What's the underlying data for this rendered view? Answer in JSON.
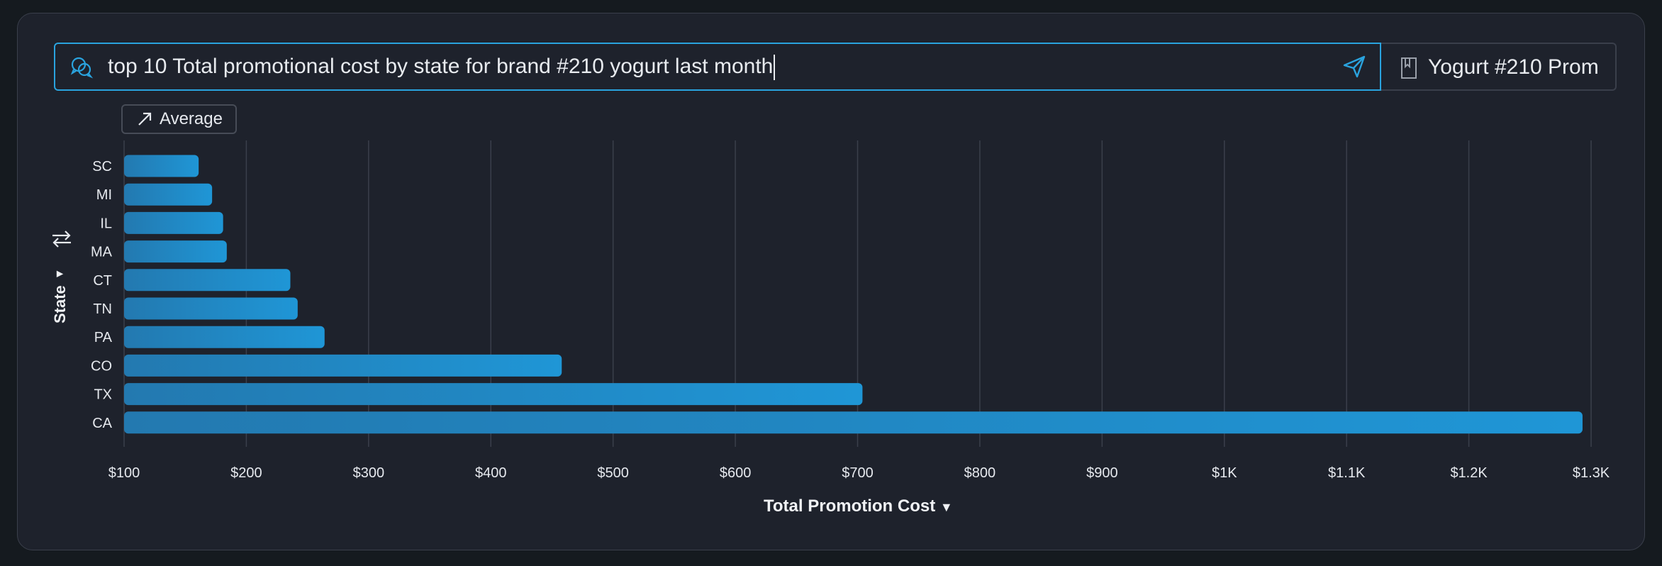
{
  "search": {
    "query": "top 10 Total promotional cost by state for brand #210 yogurt last month",
    "icon": "chat-bubbles-icon",
    "send_icon": "send-icon"
  },
  "saved": {
    "label": "Yogurt #210 Prom",
    "icon": "bookmark-icon"
  },
  "toolbar": {
    "average_label": "Average"
  },
  "colors": {
    "accent": "#2aa3de",
    "bar_start": "#2379b0",
    "bar_end": "#1f96d6",
    "grid": "#3a3f4b",
    "background": "#1e222c"
  },
  "chart_data": {
    "type": "bar",
    "orientation": "horizontal",
    "categories": [
      "SC",
      "MI",
      "IL",
      "MA",
      "CT",
      "TN",
      "PA",
      "CO",
      "TX",
      "CA"
    ],
    "values": [
      161,
      172,
      181,
      184,
      236,
      242,
      264,
      458,
      704,
      1293
    ],
    "xlabel": "Total Promotion Cost",
    "ylabel": "State",
    "xlim": [
      100,
      1300
    ],
    "xticks": [
      100,
      200,
      300,
      400,
      500,
      600,
      700,
      800,
      900,
      1000,
      1100,
      1200,
      1300
    ],
    "xtick_labels": [
      "$100",
      "$200",
      "$300",
      "$400",
      "$500",
      "$600",
      "$700",
      "$800",
      "$900",
      "$1K",
      "$1.1K",
      "$1.2K",
      "$1.3K"
    ],
    "grid": true,
    "legend": "none"
  }
}
